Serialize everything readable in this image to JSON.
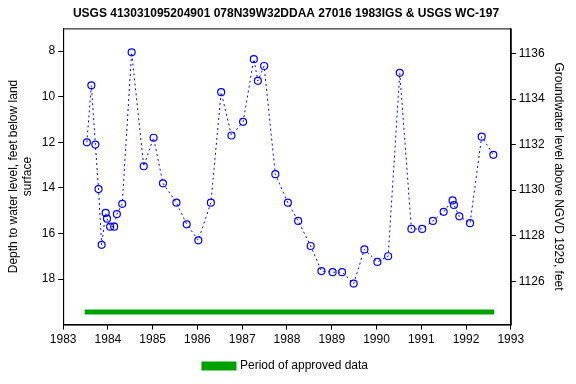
{
  "chart_data": {
    "type": "line",
    "title": "USGS 413031095204901 078N39W32DDAA 27016 1983IGS & USGS WC-197",
    "ylabel": [
      "Depth to water level, feet below land",
      "surface"
    ],
    "y2label": "Groundwater level above NGVD 1929, feet",
    "xlim": [
      1983,
      1993
    ],
    "xticks": [
      1983,
      1984,
      1985,
      1986,
      1987,
      1988,
      1989,
      1990,
      1991,
      1992,
      1993
    ],
    "ylim": [
      20,
      7
    ],
    "yticks": [
      8,
      10,
      12,
      14,
      16,
      18
    ],
    "y2lim": [
      1124.1,
      1137.1
    ],
    "y2ticks": [
      1126,
      1128,
      1130,
      1132,
      1134,
      1136
    ],
    "grid": false,
    "legend": "bottom",
    "series": [
      {
        "color": "#0000ff",
        "marker": "circle",
        "line_style": "dotted",
        "x": [
          1983.53,
          1983.63,
          1983.72,
          1983.79,
          1983.86,
          1983.95,
          1983.98,
          1984.05,
          1984.14,
          1984.2,
          1984.32,
          1984.53,
          1984.8,
          1985.02,
          1985.23,
          1985.53,
          1985.76,
          1986.02,
          1986.3,
          1986.53,
          1986.76,
          1987.02,
          1987.26,
          1987.35,
          1987.49,
          1987.74,
          1988.02,
          1988.25,
          1988.53,
          1988.77,
          1989.02,
          1989.23,
          1989.49,
          1989.73,
          1990.02,
          1990.26,
          1990.52,
          1990.78,
          1991.02,
          1991.26,
          1991.5,
          1991.7,
          1991.73,
          1991.85,
          1992.09,
          1992.35,
          1992.61
        ],
        "values": [
          12.0,
          9.5,
          12.1,
          14.05,
          16.5,
          15.1,
          15.35,
          15.7,
          15.7,
          15.15,
          14.7,
          8.05,
          13.05,
          11.8,
          13.8,
          14.65,
          15.6,
          16.3,
          14.65,
          9.8,
          11.7,
          11.1,
          8.35,
          9.3,
          8.65,
          13.4,
          14.65,
          15.45,
          16.55,
          17.65,
          17.7,
          17.7,
          18.2,
          16.7,
          17.25,
          17.0,
          8.95,
          15.8,
          15.8,
          15.45,
          15.05,
          14.55,
          14.75,
          15.25,
          15.55,
          11.75,
          12.55
        ]
      },
      {
        "name": "Period of approved data",
        "color": "#00a000",
        "marker": "none",
        "line_style": "solid",
        "x": [
          1983.48,
          1992.63
        ],
        "values": [
          19.45,
          19.45
        ]
      }
    ]
  }
}
